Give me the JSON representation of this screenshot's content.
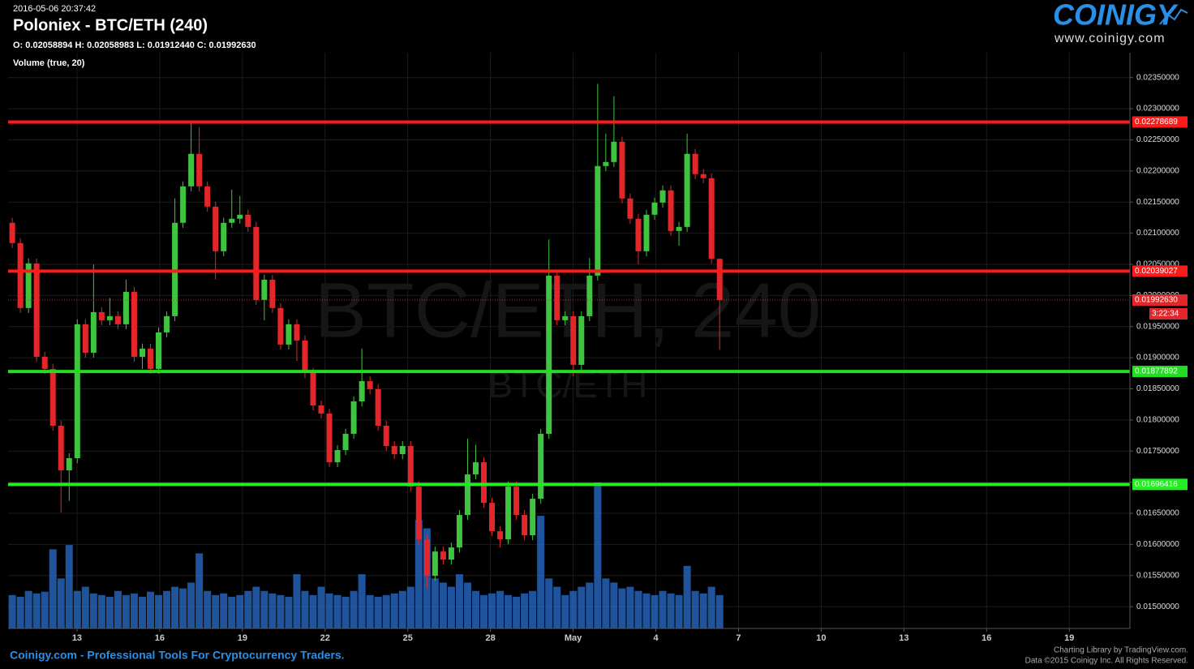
{
  "header": {
    "timestamp": "2016-05-06 20:37:42",
    "title": "Poloniex - BTC/ETH (240)",
    "ohlc": "O: 0.02058894 H: 0.02058983 L: 0.01912440 C: 0.01992630",
    "indicator": "Volume (true, 20)"
  },
  "logo": {
    "name": "COINIGY",
    "url": "www.coinigy.com"
  },
  "footer": {
    "tagline": "Coinigy.com - Professional Tools For Cryptocurrency Traders.",
    "credit": "Charting Library by TradingView.com.",
    "copyright": "Data ©2015 Coinigy Inc. All Rights Reserved."
  },
  "chart_data": {
    "type": "candlestick",
    "watermark": {
      "title": "BTC/ETH, 240",
      "subtitle": "BTC/ETH"
    },
    "up_color": "#3fc43f",
    "down_color": "#e3262a",
    "volume_color": "#2a6fcf",
    "grid": true,
    "xlim": [
      10.5,
      51.2
    ],
    "xticks": [
      13,
      16,
      19,
      22,
      25,
      28,
      {
        "value": 31,
        "label": "May"
      },
      {
        "value": 34,
        "label": "4"
      },
      {
        "value": 37,
        "label": "7"
      },
      {
        "value": 40,
        "label": "10"
      },
      {
        "value": 43,
        "label": "13"
      },
      {
        "value": 46,
        "label": "16"
      },
      {
        "value": 49,
        "label": "19"
      }
    ],
    "ylim": [
      0.01465,
      0.0239
    ],
    "yticks": [
      {
        "value": 0.015,
        "label": "0.01500000"
      },
      {
        "value": 0.0155,
        "label": "0.01550000"
      },
      {
        "value": 0.016,
        "label": "0.01600000"
      },
      {
        "value": 0.0165,
        "label": "0.01650000"
      },
      {
        "value": 0.017,
        "label": "0.01700000"
      },
      {
        "value": 0.0175,
        "label": "0.01750000"
      },
      {
        "value": 0.018,
        "label": "0.01800000"
      },
      {
        "value": 0.0185,
        "label": "0.01850000"
      },
      {
        "value": 0.019,
        "label": "0.01900000"
      },
      {
        "value": 0.0195,
        "label": "0.01950000"
      },
      {
        "value": 0.02,
        "label": "0.02000000"
      },
      {
        "value": 0.0205,
        "label": "0.02050000"
      },
      {
        "value": 0.021,
        "label": "0.02100000"
      },
      {
        "value": 0.0215,
        "label": "0.02150000"
      },
      {
        "value": 0.022,
        "label": "0.02200000"
      },
      {
        "value": 0.0225,
        "label": "0.02250000"
      },
      {
        "value": 0.023,
        "label": "0.02300000"
      },
      {
        "value": 0.0235,
        "label": "0.02350000"
      }
    ],
    "levels": [
      {
        "value": 0.02278689,
        "color": "#ff1a1a"
      },
      {
        "value": 0.02039027,
        "color": "#ff1a1a"
      },
      {
        "value": 0.01877892,
        "color": "#22dd22"
      },
      {
        "value": 0.01696416,
        "color": "#22ee22"
      }
    ],
    "last_price": {
      "value": 0.0199263,
      "label": "0.01992630",
      "countdown": "3:22:34",
      "color": "#e3262a"
    },
    "x": [
      10.65,
      10.945,
      11.24,
      11.535,
      11.83,
      12.125,
      12.42,
      12.715,
      13.01,
      13.305,
      13.6,
      13.895,
      14.19,
      14.485,
      14.78,
      15.075,
      15.37,
      15.665,
      15.96,
      16.255,
      16.55,
      16.845,
      17.14,
      17.435,
      17.73,
      18.025,
      18.32,
      18.615,
      18.91,
      19.205,
      19.5,
      19.795,
      20.09,
      20.385,
      20.68,
      20.975,
      21.27,
      21.565,
      21.86,
      22.155,
      22.45,
      22.745,
      23.04,
      23.335,
      23.63,
      23.925,
      24.22,
      24.515,
      24.81,
      25.105,
      25.4,
      25.695,
      25.99,
      26.285,
      26.58,
      26.875,
      27.17,
      27.465,
      27.76,
      28.055,
      28.35,
      28.645,
      28.94,
      29.235,
      29.53,
      29.825,
      30.12,
      30.415,
      30.71,
      31.005,
      31.3,
      31.595,
      31.89,
      32.185,
      32.48,
      32.775,
      33.07,
      33.365,
      33.66,
      33.955,
      34.25,
      34.545,
      34.84,
      35.135,
      35.43,
      35.725,
      36.02,
      36.315
    ],
    "open": [
      0.021167,
      0.020841,
      0.019798,
      0.020515,
      0.019015,
      0.01882,
      0.017907,
      0.01719,
      0.017386,
      0.019537,
      0.01908,
      0.019732,
      0.019602,
      0.019667,
      0.019537,
      0.020058,
      0.019015,
      0.019146,
      0.01882,
      0.019406,
      0.019667,
      0.021167,
      0.021753,
      0.022275,
      0.021753,
      0.021427,
      0.02071,
      0.021167,
      0.021232,
      0.021297,
      0.021101,
      0.019928,
      0.020254,
      0.019798,
      0.019211,
      0.019537,
      0.019276,
      0.018755,
      0.018233,
      0.018103,
      0.01732,
      0.017516,
      0.017777,
      0.018298,
      0.018624,
      0.018494,
      0.017907,
      0.017581,
      0.017451,
      0.017581,
      0.016929,
      0.016082,
      0.015495,
      0.015886,
      0.015756,
      0.015951,
      0.016473,
      0.017125,
      0.01732,
      0.016668,
      0.016212,
      0.016082,
      0.016929,
      0.016473,
      0.016147,
      0.016734,
      0.017777,
      0.020319,
      0.019602,
      0.019667,
      0.018885,
      0.019667,
      0.020319,
      0.022079,
      0.022144,
      0.02247,
      0.021558,
      0.021232,
      0.02071,
      0.021297,
      0.021492,
      0.021688,
      0.021036,
      0.021101,
      0.022275,
      0.021949,
      0.021884,
      0.02058894
    ],
    "high": [
      0.021247,
      0.020921,
      0.020595,
      0.020595,
      0.019095,
      0.0189,
      0.017987,
      0.017466,
      0.019617,
      0.019617,
      0.0205,
      0.019812,
      0.01996,
      0.019747,
      0.020254,
      0.020138,
      0.019226,
      0.019226,
      0.019486,
      0.019747,
      0.021558,
      0.021833,
      0.022796,
      0.0227,
      0.021833,
      0.021507,
      0.021247,
      0.0217,
      0.0216,
      0.021377,
      0.021181,
      0.020334,
      0.020334,
      0.019878,
      0.019617,
      0.019617,
      0.019356,
      0.018835,
      0.018313,
      0.018183,
      0.017596,
      0.017857,
      0.018378,
      0.019146,
      0.018704,
      0.018574,
      0.017987,
      0.017661,
      0.017661,
      0.017661,
      0.017009,
      0.016162,
      0.015966,
      0.015966,
      0.016031,
      0.016553,
      0.0177,
      0.0176,
      0.0174,
      0.016748,
      0.016292,
      0.017009,
      0.017009,
      0.016553,
      0.016814,
      0.017857,
      0.0209,
      0.020399,
      0.019747,
      0.019747,
      0.019747,
      0.0206,
      0.0234,
      0.0226,
      0.0232,
      0.02255,
      0.021638,
      0.021312,
      0.021377,
      0.021572,
      0.021768,
      0.021768,
      0.021181,
      0.0226,
      0.022355,
      0.022029,
      0.021964,
      0.02058983
    ],
    "low": [
      0.020761,
      0.019718,
      0.019718,
      0.018935,
      0.01874,
      0.017827,
      0.016512,
      0.0167,
      0.017306,
      0.019,
      0.019,
      0.019522,
      0.019522,
      0.019457,
      0.019457,
      0.018935,
      0.01882,
      0.01874,
      0.01874,
      0.019326,
      0.019587,
      0.021087,
      0.021673,
      0.021673,
      0.021347,
      0.020254,
      0.02063,
      0.021087,
      0.021152,
      0.021021,
      0.019848,
      0.0196,
      0.019718,
      0.019131,
      0.019131,
      0.01895,
      0.018675,
      0.018153,
      0.018023,
      0.01724,
      0.01724,
      0.017436,
      0.017697,
      0.018218,
      0.018414,
      0.017827,
      0.017501,
      0.017371,
      0.017371,
      0.016849,
      0.016002,
      0.0153,
      0.015415,
      0.015676,
      0.015676,
      0.015871,
      0.016393,
      0.017045,
      0.016588,
      0.016132,
      0.01595,
      0.016002,
      0.016393,
      0.016067,
      0.016067,
      0.016654,
      0.017697,
      0.019522,
      0.019522,
      0.0187,
      0.018805,
      0.019587,
      0.020239,
      0.021999,
      0.022064,
      0.021478,
      0.021152,
      0.0205,
      0.02063,
      0.021217,
      0.021412,
      0.020956,
      0.0208,
      0.021021,
      0.021869,
      0.021804,
      0.020509,
      0.0191244
    ],
    "close": [
      0.020841,
      0.019798,
      0.020515,
      0.019015,
      0.01882,
      0.017907,
      0.01719,
      0.017386,
      0.019537,
      0.01908,
      0.019732,
      0.019602,
      0.019667,
      0.019537,
      0.020058,
      0.019015,
      0.019146,
      0.01882,
      0.019406,
      0.019667,
      0.021167,
      0.021753,
      0.022275,
      0.021753,
      0.021427,
      0.02071,
      0.021167,
      0.021232,
      0.021297,
      0.021101,
      0.019928,
      0.020254,
      0.019798,
      0.019211,
      0.019537,
      0.019276,
      0.018755,
      0.018233,
      0.018103,
      0.01732,
      0.017516,
      0.017777,
      0.018298,
      0.018624,
      0.018494,
      0.017907,
      0.017581,
      0.017451,
      0.017581,
      0.016929,
      0.016082,
      0.015495,
      0.015886,
      0.015756,
      0.015951,
      0.016473,
      0.017125,
      0.01732,
      0.016668,
      0.016212,
      0.016082,
      0.016929,
      0.016473,
      0.016147,
      0.016734,
      0.017777,
      0.020319,
      0.019602,
      0.019667,
      0.018885,
      0.019667,
      0.020319,
      0.022079,
      0.022144,
      0.02247,
      0.021558,
      0.021232,
      0.02071,
      0.021297,
      0.021492,
      0.021688,
      0.021036,
      0.021101,
      0.022275,
      0.021949,
      0.021884,
      0.02058894,
      0.0199263
    ],
    "volume": [
      40,
      38,
      45,
      42,
      44,
      95,
      60,
      100,
      45,
      50,
      42,
      40,
      38,
      45,
      40,
      42,
      38,
      44,
      40,
      45,
      50,
      48,
      55,
      90,
      45,
      40,
      42,
      38,
      40,
      45,
      50,
      45,
      42,
      40,
      38,
      65,
      45,
      40,
      50,
      42,
      40,
      38,
      45,
      65,
      40,
      38,
      40,
      42,
      45,
      50,
      130,
      120,
      60,
      55,
      50,
      65,
      55,
      45,
      40,
      42,
      45,
      40,
      38,
      42,
      45,
      135,
      60,
      50,
      40,
      45,
      50,
      55,
      175,
      60,
      55,
      48,
      50,
      45,
      42,
      40,
      45,
      42,
      40,
      75,
      45,
      42,
      50,
      40
    ]
  }
}
